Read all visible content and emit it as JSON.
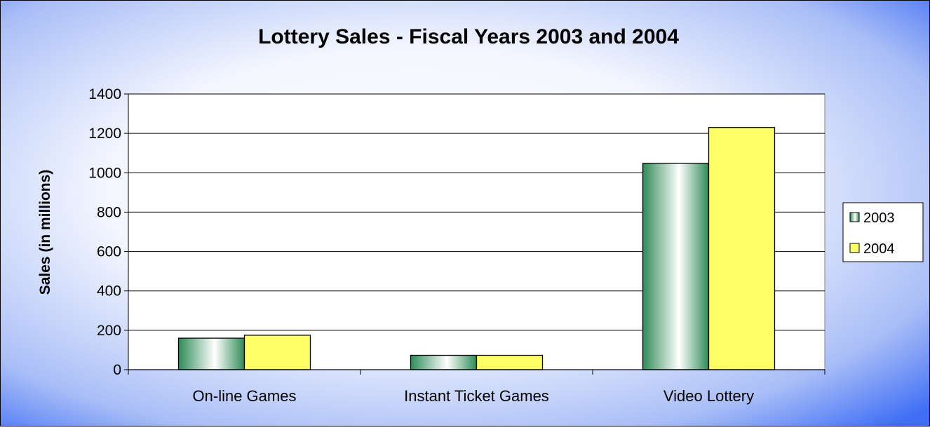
{
  "colors": {
    "series_2003_dark": "#2e8b57",
    "series_2003_light": "#ffffff",
    "series_2004": "#ffff66",
    "background_edge": "#3f6ef5",
    "background_center": "#ffffff",
    "gridline": "#000000"
  },
  "chart_data": {
    "type": "bar",
    "title": "Lottery Sales - Fiscal Years 2003 and 2004",
    "xlabel": "",
    "ylabel": "Sales (in millions)",
    "ylim": [
      0,
      1400
    ],
    "yticks": [
      "0",
      "200",
      "400",
      "600",
      "800",
      "1000",
      "1200",
      "1400"
    ],
    "grid": true,
    "legend_position": "right",
    "categories": [
      "On-line Games",
      "Instant Ticket Games",
      "Video Lottery"
    ],
    "series": [
      {
        "name": "2003",
        "values": [
          160,
          73,
          1048
        ]
      },
      {
        "name": "2004",
        "values": [
          175,
          73,
          1230
        ]
      }
    ]
  }
}
